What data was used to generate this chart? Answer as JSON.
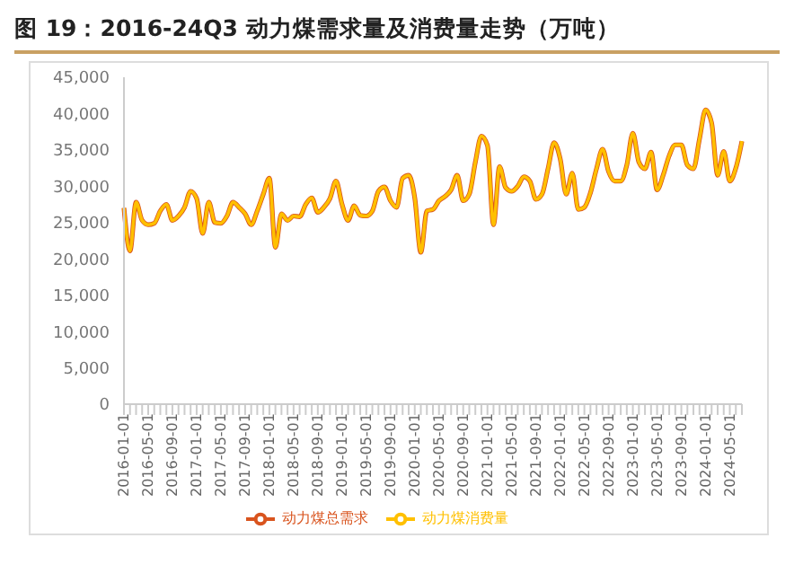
{
  "chart_data": {
    "type": "line",
    "title": "图 19：2016-24Q3 动力煤需求量及消费量走势（万吨）",
    "categories": [
      "2016-01-01",
      null,
      null,
      null,
      "2016-05-01",
      null,
      null,
      null,
      "2016-09-01",
      null,
      null,
      null,
      "2017-01-01",
      null,
      null,
      null,
      "2017-05-01",
      null,
      null,
      null,
      "2017-09-01",
      null,
      null,
      null,
      "2018-01-01",
      null,
      null,
      null,
      "2018-05-01",
      null,
      null,
      null,
      "2018-09-01",
      null,
      null,
      null,
      "2019-01-01",
      null,
      null,
      null,
      "2019-05-01",
      null,
      null,
      null,
      "2019-09-01",
      null,
      null,
      null,
      "2020-01-01",
      null,
      null,
      null,
      "2020-05-01",
      null,
      null,
      null,
      "2020-09-01",
      null,
      null,
      null,
      "2021-01-01",
      null,
      null,
      null,
      "2021-05-01",
      null,
      null,
      null,
      "2021-09-01",
      null,
      null,
      null,
      "2022-01-01",
      null,
      null,
      null,
      "2022-05-01",
      null,
      null,
      null,
      "2022-09-01",
      null,
      null,
      null,
      "2023-01-01",
      null,
      null,
      null,
      "2023-05-01",
      null,
      null,
      null,
      "2023-09-01",
      null,
      null,
      null,
      "2024-01-01",
      null,
      null,
      null,
      "2024-05-01",
      null,
      null
    ],
    "series": [
      {
        "name": "动力煤总需求",
        "color": "#d9541e",
        "values": [
          27000,
          21100,
          27800,
          25300,
          24700,
          24900,
          26600,
          27500,
          25300,
          25900,
          27100,
          29300,
          28300,
          23500,
          27800,
          25000,
          24900,
          25900,
          27800,
          27100,
          26200,
          24700,
          26600,
          28900,
          31100,
          21600,
          26200,
          25300,
          25900,
          25800,
          27500,
          28400,
          26400,
          27100,
          28300,
          30700,
          27500,
          25300,
          27300,
          26000,
          25900,
          26600,
          29300,
          29900,
          28000,
          27100,
          31100,
          31500,
          28400,
          20900,
          26600,
          26800,
          28000,
          28600,
          29500,
          31500,
          28000,
          28900,
          33300,
          36900,
          35600,
          24700,
          32700,
          29800,
          29300,
          30000,
          31300,
          30700,
          28200,
          28900,
          32400,
          36000,
          33800,
          28900,
          31800,
          26800,
          27100,
          29100,
          32400,
          35100,
          32000,
          30700,
          30700,
          32900,
          37300,
          33300,
          32400,
          34700,
          29500,
          31500,
          34200,
          35700,
          35700,
          32900,
          32400,
          36500,
          40500,
          38700,
          31500,
          34800,
          30700,
          32500,
          36200
        ]
      },
      {
        "name": "动力煤消费量",
        "color": "#ffc000",
        "values": [
          27000,
          21100,
          27800,
          25300,
          24700,
          24900,
          26600,
          27500,
          25300,
          25900,
          27100,
          29300,
          28300,
          23500,
          27800,
          25000,
          24900,
          25900,
          27800,
          27100,
          26200,
          24700,
          26600,
          28900,
          31100,
          21600,
          26200,
          25300,
          25900,
          25800,
          27500,
          28400,
          26400,
          27100,
          28300,
          30700,
          27500,
          25300,
          27300,
          26000,
          25900,
          26600,
          29300,
          29900,
          28000,
          27100,
          31100,
          31500,
          28400,
          20900,
          26600,
          26800,
          28000,
          28600,
          29500,
          31500,
          28000,
          28900,
          33300,
          36900,
          35600,
          24700,
          32700,
          29800,
          29300,
          30000,
          31300,
          30700,
          28200,
          28900,
          32400,
          36000,
          33800,
          28900,
          31800,
          26800,
          27100,
          29100,
          32400,
          35100,
          32000,
          30700,
          30700,
          32900,
          37300,
          33300,
          32400,
          34700,
          29500,
          31500,
          34200,
          35700,
          35700,
          32900,
          32400,
          36500,
          40500,
          38700,
          31500,
          34800,
          30700,
          32500,
          36200
        ]
      }
    ],
    "ylim": [
      0,
      45000
    ],
    "yticks": [
      {
        "value": 0,
        "label": "0"
      },
      {
        "value": 5000,
        "label": "5,000"
      },
      {
        "value": 10000,
        "label": "10,000"
      },
      {
        "value": 15000,
        "label": "15,000"
      },
      {
        "value": 20000,
        "label": "20,000"
      },
      {
        "value": 25000,
        "label": "25,000"
      },
      {
        "value": 30000,
        "label": "30,000"
      },
      {
        "value": 35000,
        "label": "35,000"
      },
      {
        "value": 40000,
        "label": "40,000"
      },
      {
        "value": 45000,
        "label": "45,000"
      }
    ],
    "grid": false,
    "legend": "bottom",
    "marker": "none",
    "line_style": "solid"
  }
}
